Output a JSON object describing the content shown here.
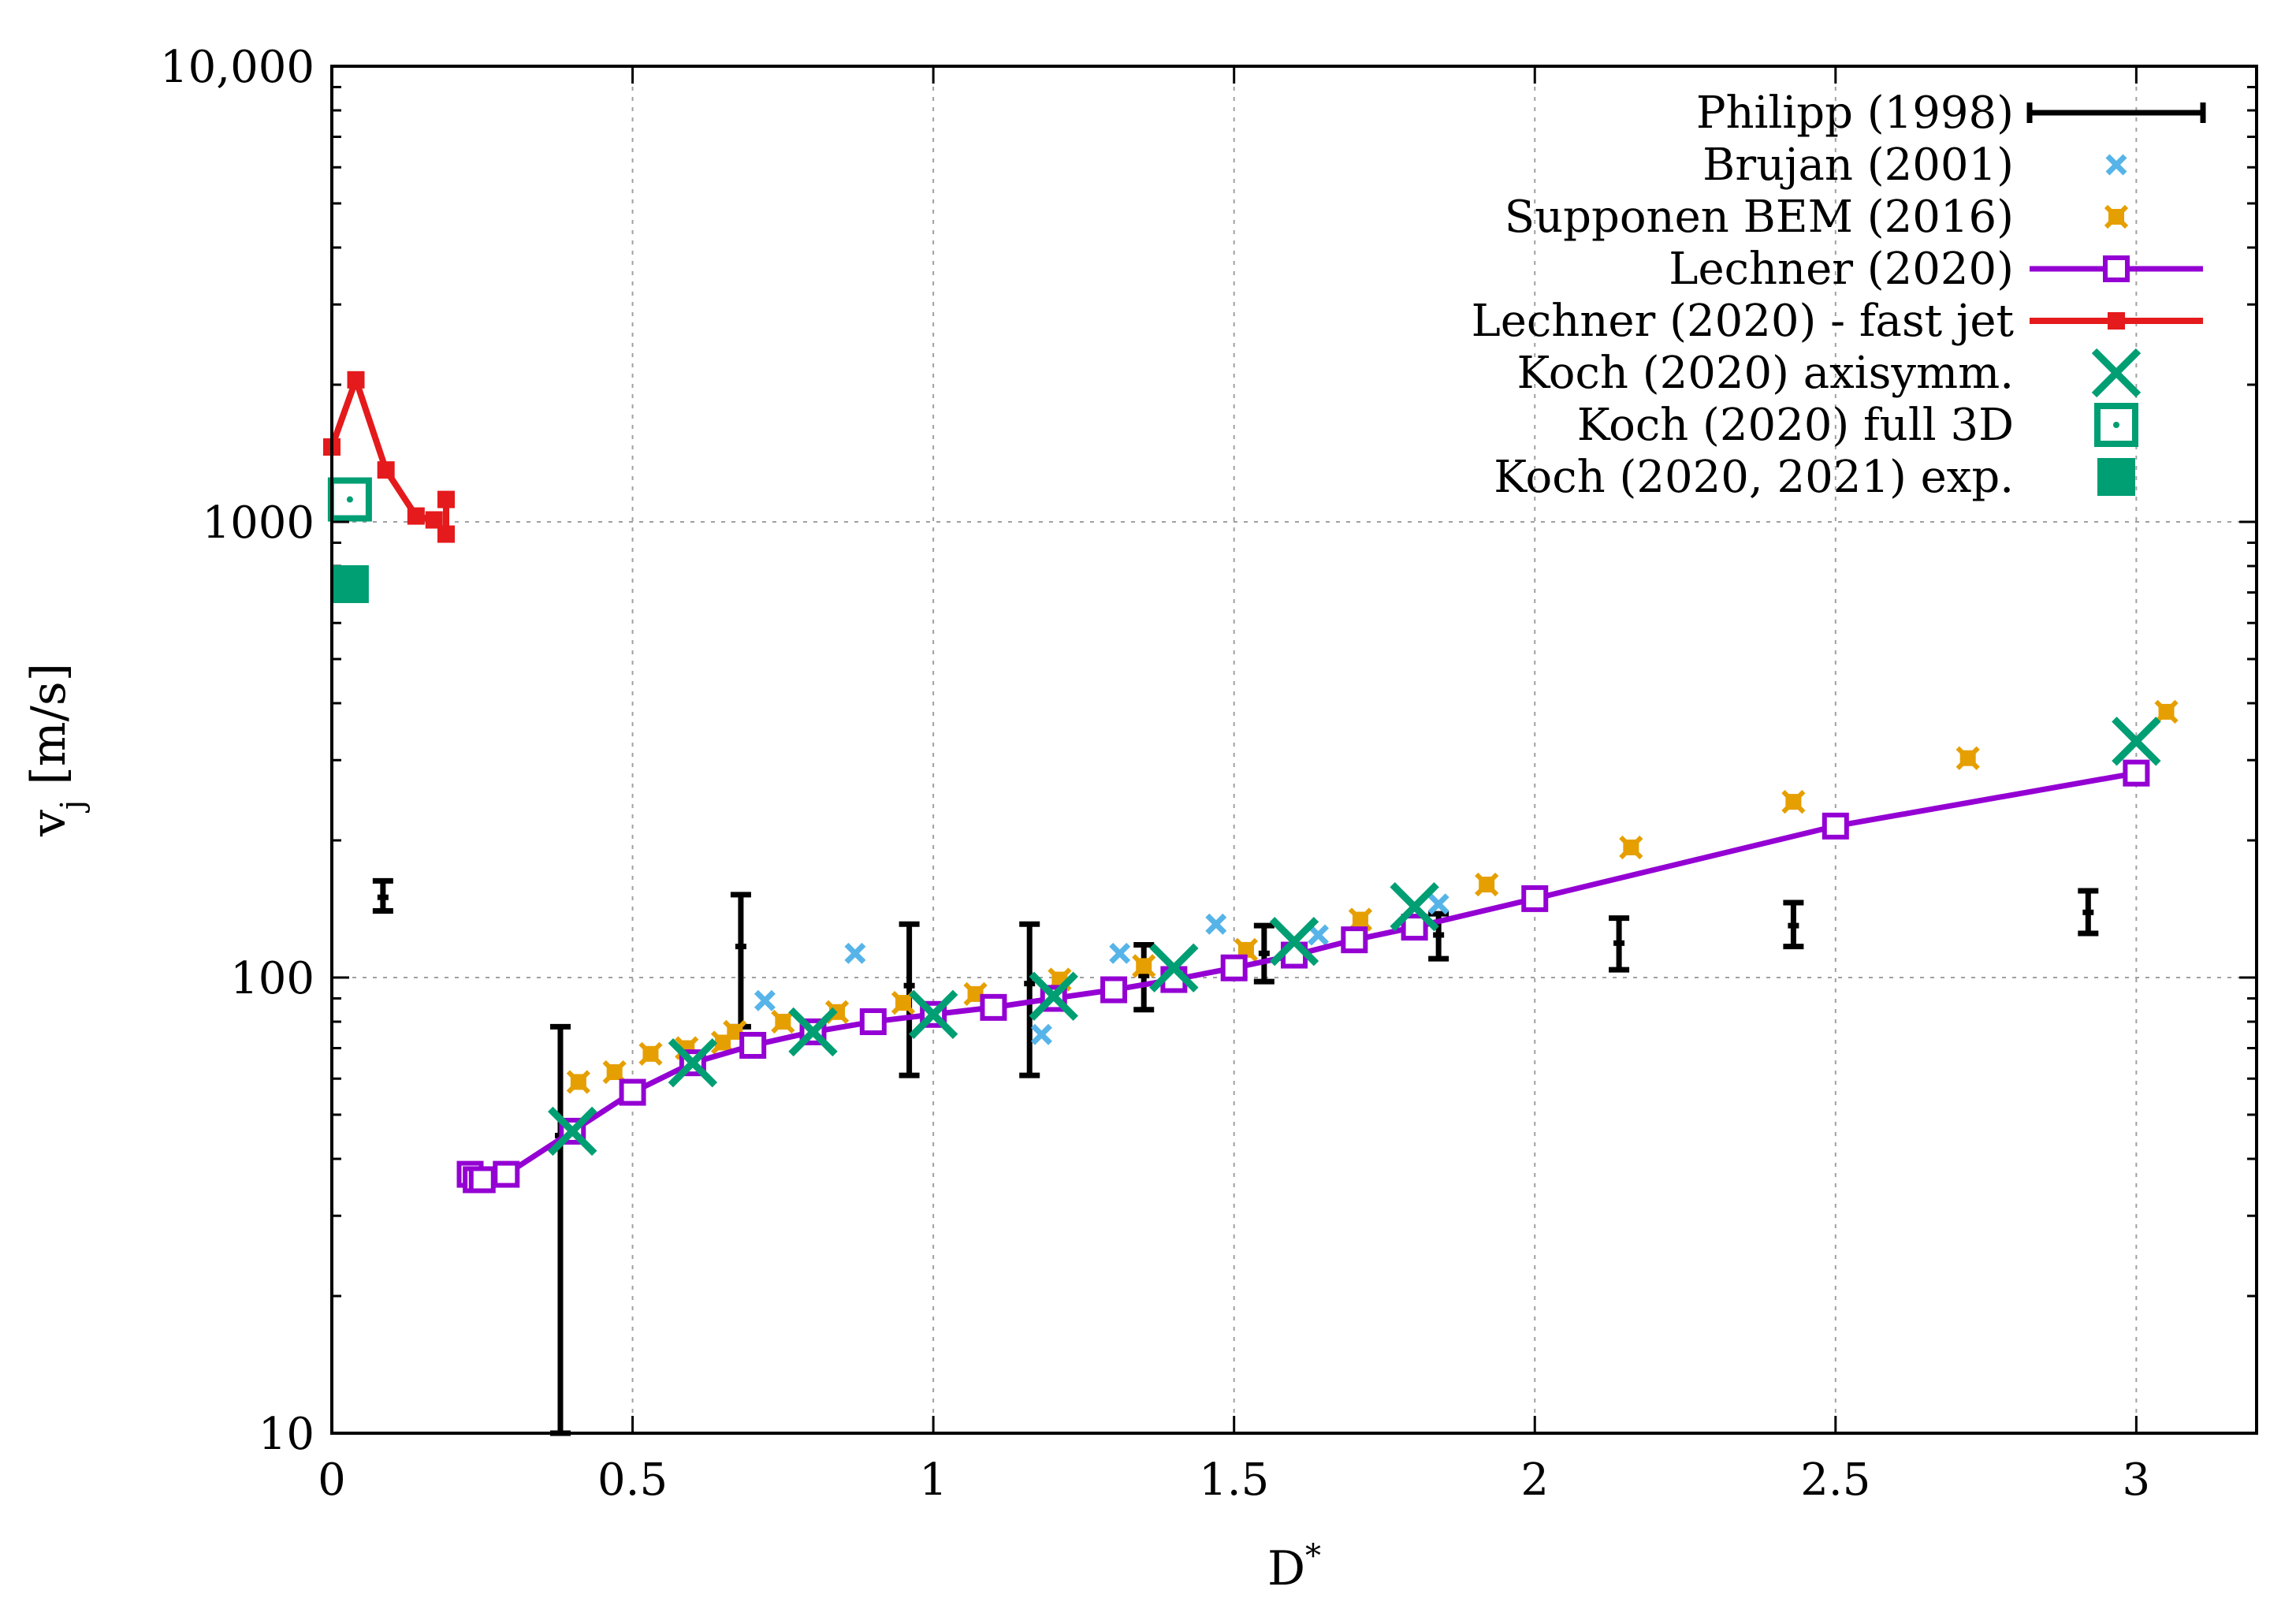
{
  "chart_data": {
    "type": "scatter",
    "xlabel": "D",
    "xlabel_sup": "*",
    "ylabel": "v",
    "ylabel_sub": "j",
    "ylabel_unit": "[m/s]",
    "xlim": [
      0,
      3.2
    ],
    "ylim": [
      10,
      10000
    ],
    "yscale": "log",
    "grid": true,
    "legend_position": "top-right",
    "x_ticks": [
      {
        "value": 0,
        "label": "0"
      },
      {
        "value": 0.5,
        "label": "0.5"
      },
      {
        "value": 1,
        "label": "1"
      },
      {
        "value": 1.5,
        "label": "1.5"
      },
      {
        "value": 2,
        "label": "2"
      },
      {
        "value": 2.5,
        "label": "2.5"
      },
      {
        "value": 3,
        "label": "3"
      }
    ],
    "y_ticks": [
      {
        "value": 10,
        "label": "10"
      },
      {
        "value": 100,
        "label": "100"
      },
      {
        "value": 1000,
        "label": "1000"
      },
      {
        "value": 10000,
        "label": "10,000"
      }
    ],
    "series": [
      {
        "name": "Philipp (1998)",
        "kind": "errorbar",
        "color": "#000000",
        "points": [
          {
            "x": 0.085,
            "y": 150,
            "low": 140,
            "high": 163
          },
          {
            "x": 0.38,
            "y": 45,
            "low": 10,
            "high": 78
          },
          {
            "x": 0.68,
            "y": 117,
            "low": 78,
            "high": 152
          },
          {
            "x": 0.96,
            "y": 96,
            "low": 61,
            "high": 131
          },
          {
            "x": 1.16,
            "y": 97,
            "low": 61,
            "high": 131
          },
          {
            "x": 1.35,
            "y": 101,
            "low": 85,
            "high": 118
          },
          {
            "x": 1.55,
            "y": 113,
            "low": 98,
            "high": 130
          },
          {
            "x": 1.84,
            "y": 124,
            "low": 110,
            "high": 138
          },
          {
            "x": 2.14,
            "y": 119,
            "low": 104,
            "high": 135
          },
          {
            "x": 2.43,
            "y": 130,
            "low": 117,
            "high": 146
          },
          {
            "x": 2.92,
            "y": 139,
            "low": 125,
            "high": 155
          }
        ]
      },
      {
        "name": "Brujan (2001)",
        "kind": "cross",
        "color": "#56b4e9",
        "points": [
          {
            "x": 0.72,
            "y": 89
          },
          {
            "x": 0.87,
            "y": 113
          },
          {
            "x": 1.18,
            "y": 75
          },
          {
            "x": 1.31,
            "y": 113
          },
          {
            "x": 1.47,
            "y": 131
          },
          {
            "x": 1.64,
            "y": 124
          },
          {
            "x": 1.84,
            "y": 145
          }
        ]
      },
      {
        "name": "Supponen BEM (2016)",
        "kind": "marker",
        "color": "#e69f00",
        "points": [
          {
            "x": 0.41,
            "y": 59
          },
          {
            "x": 0.47,
            "y": 62
          },
          {
            "x": 0.53,
            "y": 68
          },
          {
            "x": 0.59,
            "y": 70
          },
          {
            "x": 0.65,
            "y": 72
          },
          {
            "x": 0.67,
            "y": 76
          },
          {
            "x": 0.75,
            "y": 80
          },
          {
            "x": 0.84,
            "y": 84
          },
          {
            "x": 0.95,
            "y": 88
          },
          {
            "x": 1.07,
            "y": 92
          },
          {
            "x": 1.21,
            "y": 99
          },
          {
            "x": 1.35,
            "y": 106
          },
          {
            "x": 1.52,
            "y": 115
          },
          {
            "x": 1.71,
            "y": 134
          },
          {
            "x": 1.92,
            "y": 160
          },
          {
            "x": 2.16,
            "y": 193
          },
          {
            "x": 2.43,
            "y": 243
          },
          {
            "x": 2.72,
            "y": 303
          },
          {
            "x": 3.05,
            "y": 383
          }
        ]
      },
      {
        "name": "Lechner (2020)",
        "kind": "line-square",
        "color": "#9400d3",
        "points": [
          {
            "x": 0.23,
            "y": 37
          },
          {
            "x": 0.24,
            "y": 36
          },
          {
            "x": 0.25,
            "y": 36
          },
          {
            "x": 0.29,
            "y": 37
          },
          {
            "x": 0.4,
            "y": 46
          },
          {
            "x": 0.5,
            "y": 56
          },
          {
            "x": 0.6,
            "y": 65
          },
          {
            "x": 0.7,
            "y": 71
          },
          {
            "x": 0.8,
            "y": 76
          },
          {
            "x": 0.9,
            "y": 80
          },
          {
            "x": 1.0,
            "y": 83
          },
          {
            "x": 1.1,
            "y": 86
          },
          {
            "x": 1.2,
            "y": 90
          },
          {
            "x": 1.3,
            "y": 94
          },
          {
            "x": 1.4,
            "y": 99
          },
          {
            "x": 1.5,
            "y": 105
          },
          {
            "x": 1.6,
            "y": 112
          },
          {
            "x": 1.7,
            "y": 121
          },
          {
            "x": 1.8,
            "y": 129
          },
          {
            "x": 2.0,
            "y": 149
          },
          {
            "x": 2.5,
            "y": 215
          },
          {
            "x": 3.0,
            "y": 281
          }
        ]
      },
      {
        "name": "Lechner (2020) - fast jet",
        "kind": "line-smallsquare",
        "color": "#e41a1c",
        "points": [
          {
            "x": 0.0,
            "y": 1460
          },
          {
            "x": 0.04,
            "y": 2050
          },
          {
            "x": 0.09,
            "y": 1300
          },
          {
            "x": 0.14,
            "y": 1030
          },
          {
            "x": 0.17,
            "y": 1010
          },
          {
            "x": 0.19,
            "y": 940
          },
          {
            "x": 0.19,
            "y": 1120
          }
        ]
      },
      {
        "name": "Koch (2020) axisymm.",
        "kind": "big-cross",
        "color": "#009e73",
        "points": [
          {
            "x": 0.4,
            "y": 46
          },
          {
            "x": 0.6,
            "y": 65
          },
          {
            "x": 0.8,
            "y": 76
          },
          {
            "x": 1.0,
            "y": 83
          },
          {
            "x": 1.2,
            "y": 91
          },
          {
            "x": 1.4,
            "y": 105
          },
          {
            "x": 1.6,
            "y": 120
          },
          {
            "x": 1.8,
            "y": 143
          },
          {
            "x": 3.0,
            "y": 330
          }
        ]
      },
      {
        "name": "Koch (2020) full 3D",
        "kind": "dotted-square",
        "color": "#009e73",
        "points": [
          {
            "x": 0.03,
            "y": 1120
          }
        ]
      },
      {
        "name": "Koch (2020, 2021) exp.",
        "kind": "filled-square",
        "color": "#009e73",
        "points": [
          {
            "x": 0.03,
            "y": 730
          }
        ]
      }
    ]
  }
}
